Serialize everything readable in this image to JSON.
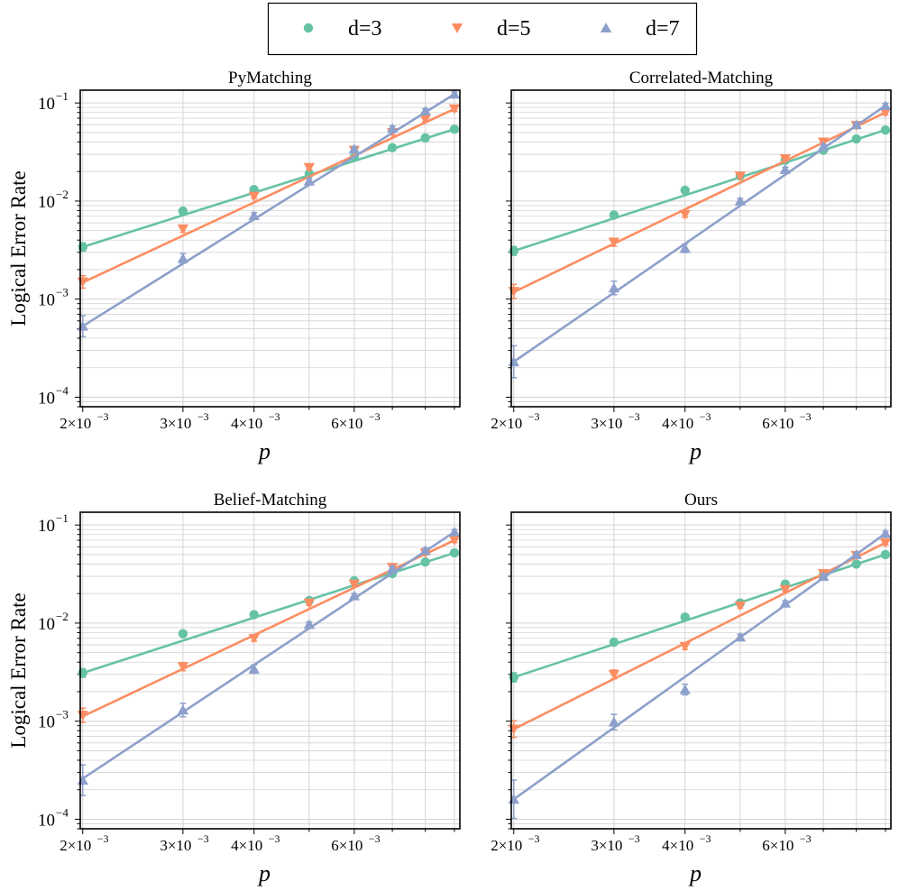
{
  "figure": {
    "ylabel": "Logical Error Rate",
    "xlabel": "p"
  },
  "legend": {
    "placement": "top-center",
    "entries": [
      {
        "label": "d=3",
        "marker": "circle",
        "color": "#66c2a5"
      },
      {
        "label": "d=5",
        "marker": "triangle-down",
        "color": "#fc8d62"
      },
      {
        "label": "d=7",
        "marker": "triangle-up",
        "color": "#8da0cb"
      }
    ]
  },
  "axes": {
    "x_ticks": [
      {
        "value": 0.002,
        "mantissa": "2",
        "base": "10",
        "exp": "−3"
      },
      {
        "value": 0.003,
        "mantissa": "3",
        "base": "10",
        "exp": "−3"
      },
      {
        "value": 0.004,
        "mantissa": "4",
        "base": "10",
        "exp": "−3"
      },
      {
        "value": 0.006,
        "mantissa": "6",
        "base": "10",
        "exp": "−3"
      }
    ],
    "y_ticks": [
      {
        "value": 0.1,
        "base": "10",
        "exp": "−1"
      },
      {
        "value": 0.01,
        "base": "10",
        "exp": "−2"
      },
      {
        "value": 0.001,
        "base": "10",
        "exp": "−3"
      },
      {
        "value": 0.0001,
        "base": "10",
        "exp": "−4"
      }
    ]
  },
  "chart_data": [
    {
      "type": "scatter",
      "title": "PyMatching",
      "xscale": "log",
      "yscale": "log",
      "xlim": [
        0.00198,
        0.0092
      ],
      "ylim": [
        8e-05,
        0.135
      ],
      "xlabel": "p",
      "ylabel": "Logical Error Rate",
      "grid": true,
      "x": [
        0.002,
        0.003,
        0.004,
        0.005,
        0.006,
        0.007,
        0.008,
        0.009
      ],
      "series": [
        {
          "name": "d=3",
          "values": [
            0.0034,
            0.0079,
            0.0131,
            0.019,
            0.028,
            0.035,
            0.044,
            0.054
          ],
          "fit": [
            0.0034,
            0.054
          ]
        },
        {
          "name": "d=5",
          "values": [
            0.0015,
            0.0052,
            0.0112,
            0.022,
            0.033,
            0.05,
            0.068,
            0.087
          ],
          "fit": [
            0.00148,
            0.087
          ]
        },
        {
          "name": "d=7",
          "values": [
            0.00053,
            0.0026,
            0.0071,
            0.016,
            0.034,
            0.055,
            0.083,
            0.123
          ],
          "fit": [
            0.00053,
            0.123
          ]
        }
      ]
    },
    {
      "type": "scatter",
      "title": "Correlated-Matching",
      "xscale": "log",
      "yscale": "log",
      "xlim": [
        0.00198,
        0.0092
      ],
      "ylim": [
        8e-05,
        0.135
      ],
      "xlabel": "p",
      "ylabel": "",
      "grid": true,
      "x": [
        0.002,
        0.003,
        0.004,
        0.005,
        0.006,
        0.007,
        0.008,
        0.009
      ],
      "series": [
        {
          "name": "d=3",
          "values": [
            0.0031,
            0.0072,
            0.0129,
            0.018,
            0.026,
            0.033,
            0.043,
            0.053
          ],
          "fit": [
            0.0031,
            0.053
          ]
        },
        {
          "name": "d=5",
          "values": [
            0.0012,
            0.0038,
            0.0073,
            0.018,
            0.027,
            0.04,
            0.059,
            0.08
          ],
          "fit": [
            0.00118,
            0.08
          ]
        },
        {
          "name": "d=7",
          "values": [
            0.00023,
            0.0013,
            0.0033,
            0.01,
            0.021,
            0.036,
            0.06,
            0.094
          ],
          "fit": [
            0.00023,
            0.094
          ]
        }
      ]
    },
    {
      "type": "scatter",
      "title": "Belief-Matching",
      "xscale": "log",
      "yscale": "log",
      "xlim": [
        0.00198,
        0.0092
      ],
      "ylim": [
        8e-05,
        0.135
      ],
      "xlabel": "p",
      "ylabel": "Logical Error Rate",
      "grid": true,
      "x": [
        0.002,
        0.003,
        0.004,
        0.005,
        0.006,
        0.007,
        0.008,
        0.009
      ],
      "series": [
        {
          "name": "d=3",
          "values": [
            0.0031,
            0.0078,
            0.0122,
            0.017,
            0.027,
            0.032,
            0.042,
            0.052
          ],
          "fit": [
            0.0031,
            0.052
          ]
        },
        {
          "name": "d=5",
          "values": [
            0.00115,
            0.0036,
            0.007,
            0.016,
            0.025,
            0.037,
            0.052,
            0.07
          ],
          "fit": [
            0.00112,
            0.07
          ]
        },
        {
          "name": "d=7",
          "values": [
            0.00025,
            0.0013,
            0.0034,
            0.0097,
            0.019,
            0.036,
            0.055,
            0.085
          ],
          "fit": [
            0.00026,
            0.085
          ]
        }
      ]
    },
    {
      "type": "scatter",
      "title": "Ours",
      "xscale": "log",
      "yscale": "log",
      "xlim": [
        0.00198,
        0.0092
      ],
      "ylim": [
        8e-05,
        0.135
      ],
      "xlabel": "p",
      "ylabel": "",
      "grid": true,
      "x": [
        0.002,
        0.003,
        0.004,
        0.005,
        0.006,
        0.007,
        0.008,
        0.009
      ],
      "series": [
        {
          "name": "d=3",
          "values": [
            0.0028,
            0.0064,
            0.0115,
            0.016,
            0.025,
            0.031,
            0.04,
            0.05
          ],
          "fit": [
            0.0028,
            0.05
          ]
        },
        {
          "name": "d=5",
          "values": [
            0.00083,
            0.003,
            0.0058,
            0.015,
            0.022,
            0.032,
            0.049,
            0.066
          ],
          "fit": [
            0.00083,
            0.066
          ]
        },
        {
          "name": "d=7",
          "values": [
            0.00016,
            0.00098,
            0.0021,
            0.0072,
            0.016,
            0.03,
            0.05,
            0.082
          ],
          "fit": [
            0.00016,
            0.082
          ]
        }
      ]
    }
  ]
}
